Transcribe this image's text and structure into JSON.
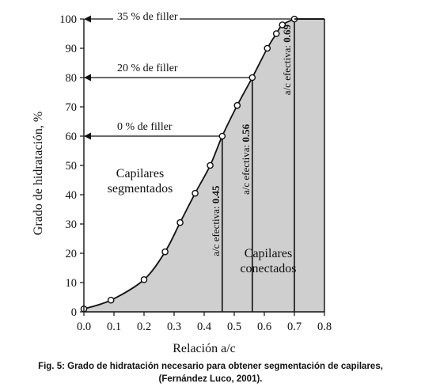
{
  "chart_data": {
    "type": "area",
    "xlabel": "Relación a/c",
    "ylabel": "Grado de hidratación, %",
    "xlim": [
      0.0,
      0.8
    ],
    "ylim": [
      0,
      100
    ],
    "x_ticks": [
      "0.0",
      "0.1",
      "0.2",
      "0.3",
      "0.4",
      "0.5",
      "0.6",
      "0.7",
      "0.8"
    ],
    "y_ticks": [
      "0",
      "10",
      "20",
      "30",
      "40",
      "50",
      "60",
      "70",
      "80",
      "90",
      "100"
    ],
    "grid": false,
    "fill_color": "#cfcfcf",
    "x": [
      0.0,
      0.09,
      0.2,
      0.27,
      0.32,
      0.37,
      0.42,
      0.46,
      0.51,
      0.56,
      0.61,
      0.64,
      0.66,
      0.7
    ],
    "y": [
      1,
      4,
      11,
      20.5,
      30.5,
      40.5,
      50,
      60,
      70.5,
      80,
      90,
      95,
      98,
      100
    ],
    "annotations": [
      {
        "text": "35 % de filler",
        "y": 100
      },
      {
        "text": "20 % de filler",
        "y": 80
      },
      {
        "text": "0 % de filler",
        "y": 60
      }
    ],
    "vertical_labels": [
      {
        "text": "a/c efectiva: ",
        "value": "0.45",
        "x": 0.46
      },
      {
        "text": "a/c efectiva: ",
        "value": "0.56",
        "x": 0.56
      },
      {
        "text": "a/c efectiva: ",
        "value": "0.69",
        "x": 0.7
      }
    ],
    "region_labels": [
      {
        "lines": [
          "Capilares",
          "segmentados"
        ]
      },
      {
        "lines": [
          "Capilares",
          "conectados"
        ]
      }
    ]
  },
  "caption": {
    "line1": "Fig. 5: Grado de hidratación necesario para obtener segmentación de capilares,",
    "line2": "(Fernández Luco, 2001)."
  }
}
